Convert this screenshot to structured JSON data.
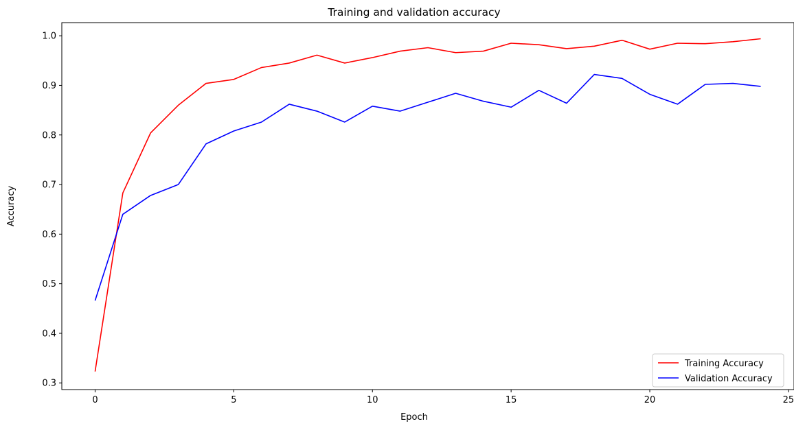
{
  "chart_data": {
    "type": "line",
    "title": "Training and validation accuracy",
    "xlabel": "Epoch",
    "ylabel": "Accuracy",
    "xlim": [
      -1.2,
      25.2
    ],
    "ylim": [
      0.2865,
      1.0265
    ],
    "xticks": [
      0,
      5,
      10,
      15,
      20,
      25
    ],
    "xtick_labels": [
      "0",
      "5",
      "10",
      "15",
      "20",
      "25"
    ],
    "yticks": [
      0.3,
      0.4,
      0.5,
      0.6,
      0.7,
      0.8,
      0.9,
      1.0
    ],
    "ytick_labels": [
      "0.3",
      "0.4",
      "0.5",
      "0.6",
      "0.7",
      "0.8",
      "0.9",
      "1.0"
    ],
    "grid": false,
    "legend_position": "lower-right",
    "x": [
      0,
      1,
      2,
      3,
      4,
      5,
      6,
      7,
      8,
      9,
      10,
      11,
      12,
      13,
      14,
      15,
      16,
      17,
      18,
      19,
      20,
      21,
      22,
      23,
      24
    ],
    "series": [
      {
        "name": "Training Accuracy",
        "color": "#ff0000",
        "values": [
          0.323,
          0.683,
          0.804,
          0.86,
          0.904,
          0.912,
          0.936,
          0.945,
          0.961,
          0.945,
          0.956,
          0.969,
          0.976,
          0.966,
          0.969,
          0.985,
          0.982,
          0.974,
          0.979,
          0.991,
          0.973,
          0.985,
          0.984,
          0.988,
          0.994
        ]
      },
      {
        "name": "Validation Accuracy",
        "color": "#0000ff",
        "values": [
          0.466,
          0.64,
          0.678,
          0.7,
          0.782,
          0.808,
          0.826,
          0.862,
          0.848,
          0.826,
          0.858,
          0.848,
          0.866,
          0.884,
          0.868,
          0.856,
          0.89,
          0.864,
          0.922,
          0.914,
          0.882,
          0.862,
          0.902,
          0.904,
          0.898
        ]
      }
    ]
  }
}
